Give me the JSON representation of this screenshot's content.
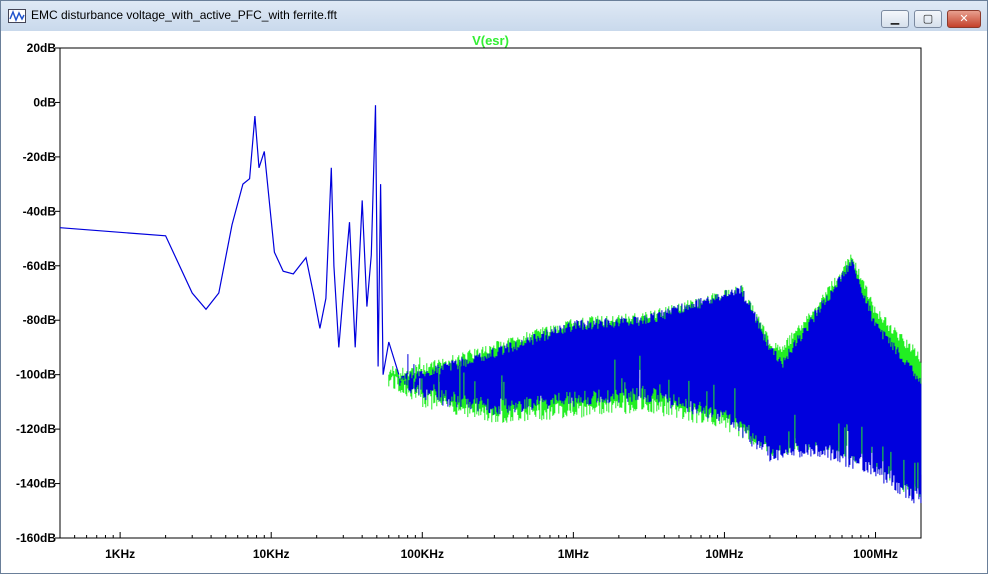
{
  "window": {
    "title": "EMC disturbance voltage_with_active_PFC_with ferrite.fft",
    "buttons": {
      "minimize": "▁",
      "maximize": "▢",
      "close": "✕"
    }
  },
  "chart_data": {
    "type": "line",
    "title": "V(esr)",
    "title_color": "#33ee33",
    "xscale": "log",
    "xlim": [
      400,
      200000000
    ],
    "ylim": [
      -160,
      20
    ],
    "x_ticks": [
      {
        "value": 1000,
        "label": "1KHz"
      },
      {
        "value": 10000,
        "label": "10KHz"
      },
      {
        "value": 100000,
        "label": "100KHz"
      },
      {
        "value": 1000000,
        "label": "1MHz"
      },
      {
        "value": 10000000,
        "label": "10MHz"
      },
      {
        "value": 100000000,
        "label": "100MHz"
      }
    ],
    "y_ticks": [
      {
        "value": 20,
        "label": "20dB"
      },
      {
        "value": 0,
        "label": "0dB"
      },
      {
        "value": -20,
        "label": "-20dB"
      },
      {
        "value": -40,
        "label": "-40dB"
      },
      {
        "value": -60,
        "label": "-60dB"
      },
      {
        "value": -80,
        "label": "-80dB"
      },
      {
        "value": -100,
        "label": "-100dB"
      },
      {
        "value": -120,
        "label": "-120dB"
      },
      {
        "value": -140,
        "label": "-140dB"
      },
      {
        "value": -160,
        "label": "-160dB"
      }
    ],
    "grid": false,
    "series": [
      {
        "color": "#22ee22",
        "upper": [
          [
            60000,
            -98
          ],
          [
            100000,
            -96
          ],
          [
            300000,
            -88
          ],
          [
            1000000,
            -79
          ],
          [
            3000000,
            -77
          ],
          [
            13000000,
            -67
          ],
          [
            20000000,
            -86
          ],
          [
            24000000,
            -89
          ],
          [
            40000000,
            -74
          ],
          [
            70000000,
            -55
          ],
          [
            100000000,
            -75
          ],
          [
            200000000,
            -92
          ]
        ],
        "lower": [
          [
            60000,
            -105
          ],
          [
            100000,
            -112
          ],
          [
            300000,
            -118
          ],
          [
            1000000,
            -116
          ],
          [
            3000000,
            -114
          ],
          [
            10000000,
            -120
          ],
          [
            20000000,
            -130
          ],
          [
            40000000,
            -128
          ],
          [
            100000000,
            -135
          ],
          [
            200000000,
            -148
          ]
        ]
      },
      {
        "color": "#0000dd",
        "points": [
          [
            400,
            -46
          ],
          [
            2000,
            -49
          ],
          [
            3000,
            -70
          ],
          [
            3700,
            -76
          ],
          [
            4500,
            -70
          ],
          [
            5500,
            -45
          ],
          [
            6500,
            -30
          ],
          [
            7200,
            -28
          ],
          [
            7800,
            -5
          ],
          [
            8300,
            -24
          ],
          [
            9000,
            -18
          ],
          [
            10500,
            -55
          ],
          [
            12000,
            -62
          ],
          [
            14000,
            -63
          ],
          [
            17000,
            -57
          ],
          [
            19000,
            -70
          ],
          [
            21000,
            -83
          ],
          [
            23000,
            -72
          ],
          [
            25000,
            -24
          ],
          [
            26000,
            -60
          ],
          [
            28000,
            -90
          ],
          [
            30000,
            -70
          ],
          [
            33000,
            -44
          ],
          [
            36000,
            -90
          ],
          [
            40000,
            -36
          ],
          [
            43000,
            -75
          ],
          [
            46000,
            -56
          ],
          [
            49000,
            -1
          ],
          [
            51000,
            -97
          ],
          [
            53000,
            -30
          ],
          [
            55000,
            -100
          ],
          [
            60000,
            -88
          ],
          [
            70000,
            -100
          ]
        ],
        "upper": [
          [
            70000,
            -100
          ],
          [
            100000,
            -98
          ],
          [
            300000,
            -90
          ],
          [
            1000000,
            -80
          ],
          [
            3000000,
            -78
          ],
          [
            13000000,
            -67
          ],
          [
            20000000,
            -88
          ],
          [
            24000000,
            -94
          ],
          [
            40000000,
            -76
          ],
          [
            70000000,
            -57
          ],
          [
            100000000,
            -80
          ],
          [
            200000000,
            -100
          ]
        ],
        "lower": [
          [
            70000,
            -105
          ],
          [
            100000,
            -110
          ],
          [
            300000,
            -115
          ],
          [
            1000000,
            -112
          ],
          [
            3000000,
            -110
          ],
          [
            10000000,
            -118
          ],
          [
            20000000,
            -132
          ],
          [
            40000000,
            -130
          ],
          [
            100000000,
            -138
          ],
          [
            200000000,
            -150
          ]
        ]
      }
    ]
  }
}
